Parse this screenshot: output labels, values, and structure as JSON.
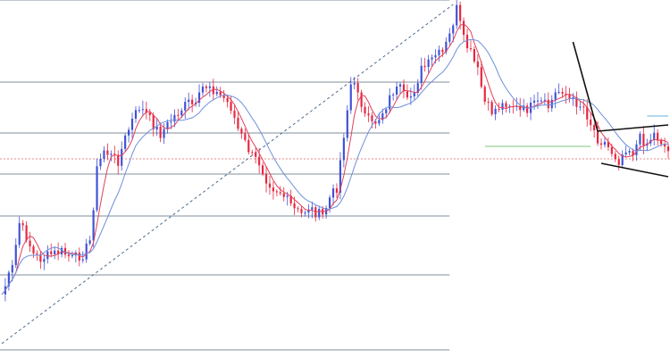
{
  "chart_data": {
    "type": "candlestick",
    "title": "",
    "xlabel": "",
    "ylabel": "",
    "grid": false,
    "legend": "none",
    "ylim": [
      0,
      400
    ],
    "x_count": 190,
    "colors": {
      "bull": "#3f51d6",
      "bear": "#e8263f",
      "ma_fast": "#e0405a",
      "ma_slow": "#6f8fdc",
      "fib_line": "#55677a",
      "diagonal": "#4a6a8a",
      "current_price": "#e06060",
      "support": "#7cc47c",
      "wedge": "#111111",
      "accent": "#66b0e0"
    },
    "anchors": [
      [
        0,
        330
      ],
      [
        3,
        300
      ],
      [
        5,
        250
      ],
      [
        7,
        265
      ],
      [
        9,
        285
      ],
      [
        11,
        290
      ],
      [
        14,
        285
      ],
      [
        17,
        282
      ],
      [
        20,
        290
      ],
      [
        23,
        285
      ],
      [
        25,
        270
      ],
      [
        27,
        190
      ],
      [
        29,
        168
      ],
      [
        31,
        175
      ],
      [
        33,
        180
      ],
      [
        35,
        155
      ],
      [
        37,
        135
      ],
      [
        39,
        120
      ],
      [
        41,
        128
      ],
      [
        43,
        140
      ],
      [
        45,
        150
      ],
      [
        47,
        140
      ],
      [
        49,
        130
      ],
      [
        51,
        122
      ],
      [
        53,
        115
      ],
      [
        55,
        120
      ],
      [
        57,
        98
      ],
      [
        59,
        95
      ],
      [
        61,
        105
      ],
      [
        63,
        110
      ],
      [
        65,
        120
      ],
      [
        67,
        145
      ],
      [
        69,
        160
      ],
      [
        71,
        175
      ],
      [
        73,
        182
      ],
      [
        75,
        200
      ],
      [
        77,
        210
      ],
      [
        79,
        215
      ],
      [
        81,
        225
      ],
      [
        83,
        235
      ],
      [
        85,
        240
      ],
      [
        87,
        232
      ],
      [
        89,
        238
      ],
      [
        91,
        242
      ],
      [
        93,
        222
      ],
      [
        95,
        210
      ],
      [
        97,
        150
      ],
      [
        99,
        95
      ],
      [
        101,
        100
      ],
      [
        103,
        130
      ],
      [
        105,
        140
      ],
      [
        107,
        132
      ],
      [
        109,
        118
      ],
      [
        111,
        102
      ],
      [
        113,
        100
      ],
      [
        115,
        115
      ],
      [
        117,
        100
      ],
      [
        119,
        78
      ],
      [
        121,
        72
      ],
      [
        123,
        62
      ],
      [
        125,
        60
      ],
      [
        127,
        40
      ],
      [
        129,
        10
      ],
      [
        131,
        45
      ],
      [
        133,
        60
      ],
      [
        135,
        80
      ],
      [
        137,
        115
      ],
      [
        139,
        125
      ],
      [
        141,
        120
      ],
      [
        143,
        115
      ],
      [
        145,
        118
      ],
      [
        147,
        125
      ],
      [
        149,
        122
      ],
      [
        151,
        118
      ],
      [
        153,
        115
      ],
      [
        155,
        120
      ],
      [
        157,
        105
      ],
      [
        159,
        100
      ],
      [
        161,
        112
      ],
      [
        163,
        115
      ],
      [
        165,
        120
      ],
      [
        167,
        138
      ],
      [
        169,
        155
      ],
      [
        171,
        160
      ],
      [
        173,
        170
      ],
      [
        175,
        180
      ],
      [
        177,
        165
      ],
      [
        179,
        170
      ],
      [
        181,
        155
      ],
      [
        183,
        160
      ],
      [
        185,
        150
      ],
      [
        187,
        158
      ],
      [
        189,
        170
      ]
    ],
    "fib_levels": [
      {
        "value": 0,
        "x_end": 127
      },
      {
        "value": 92,
        "x_end": 127
      },
      {
        "value": 149,
        "x_end": 127
      },
      {
        "value": 195,
        "x_end": 127
      },
      {
        "value": 242,
        "x_end": 127
      },
      {
        "value": 308,
        "x_end": 127
      },
      {
        "value": 392,
        "x_end": 127
      }
    ],
    "current_price": 178,
    "support_level": {
      "value": 164,
      "x_start": 137,
      "x_end": 167
    },
    "accent_level": {
      "value": 130,
      "x_start": 183,
      "x_end": 189
    },
    "trendline": {
      "x1": 0,
      "y1": 385,
      "x2": 128,
      "y2": 5
    },
    "wedge": [
      {
        "x1": 162,
        "y1": 47,
        "x2": 169,
        "y2": 147
      },
      {
        "x1": 169,
        "y1": 147,
        "x2": 189,
        "y2": 140
      },
      {
        "x1": 170,
        "y1": 183,
        "x2": 189,
        "y2": 198
      }
    ]
  }
}
